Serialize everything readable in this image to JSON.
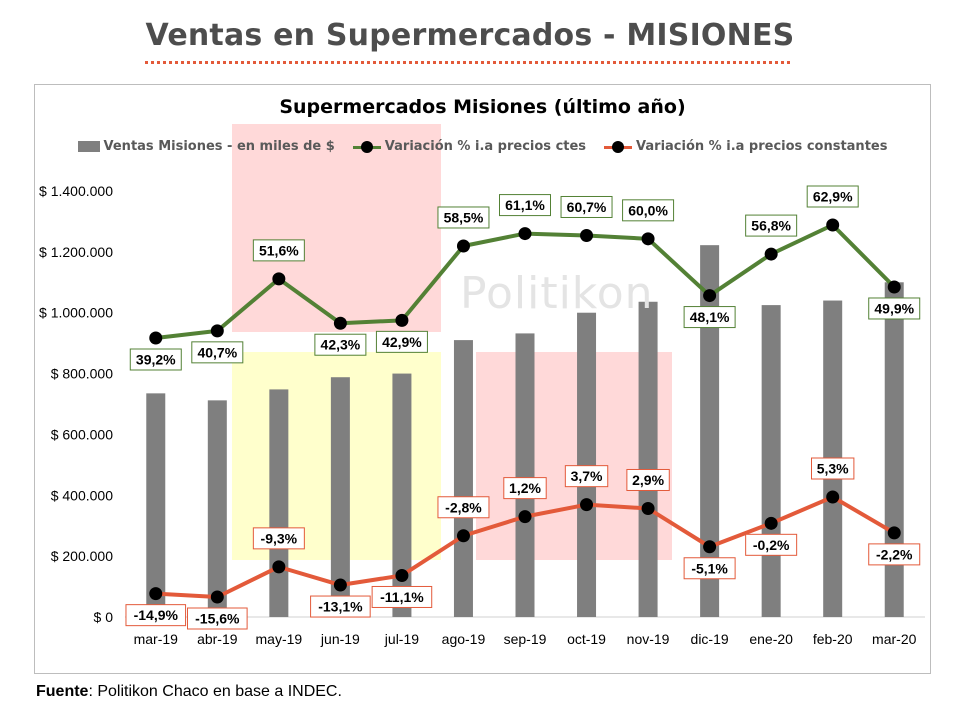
{
  "page": {
    "title": "Ventas en Supermercados - MISIONES",
    "watermark": "Politikon",
    "source_label": "Fuente",
    "source_text": ": Politikon Chaco en base a INDEC."
  },
  "chart_data": {
    "type": "bar",
    "title": "Supermercados Misiones (último año)",
    "categories": [
      "mar-19",
      "abr-19",
      "may-19",
      "jun-19",
      "jul-19",
      "ago-19",
      "sep-19",
      "oct-19",
      "nov-19",
      "dic-19",
      "ene-20",
      "feb-20",
      "mar-20"
    ],
    "ylim": [
      0,
      1400000
    ],
    "y_ticks": [
      0,
      200000,
      400000,
      600000,
      800000,
      1000000,
      1200000,
      1400000
    ],
    "y_tick_labels": [
      "$ 0",
      "$ 200.000",
      "$ 400.000",
      "$ 600.000",
      "$ 800.000",
      "$ 1.000.000",
      "$ 1.200.000",
      "$ 1.400.000"
    ],
    "grid": false,
    "legend_position": "top",
    "series": [
      {
        "name": "Ventas Misiones - en miles de $",
        "type": "bar",
        "color": "#7f7f7f",
        "values": [
          735000,
          712000,
          748000,
          788000,
          800000,
          910000,
          932000,
          1000000,
          1036000,
          1222000,
          1025000,
          1040000,
          1100000
        ]
      },
      {
        "name": "Variación % i.a precios ctes",
        "type": "line",
        "color": "#538135",
        "label_border": "#538135",
        "values": [
          39.2,
          40.7,
          51.6,
          42.3,
          42.9,
          58.5,
          61.1,
          60.7,
          60.0,
          48.1,
          56.8,
          62.9,
          49.9
        ],
        "labels": [
          "39,2%",
          "40,7%",
          "51,6%",
          "42,3%",
          "42,9%",
          "58,5%",
          "61,1%",
          "60,7%",
          "60,0%",
          "48,1%",
          "56,8%",
          "62,9%",
          "49,9%"
        ]
      },
      {
        "name": "Variación % i.a precios constantes",
        "type": "line",
        "color": "#e35a3a",
        "label_border": "#e35a3a",
        "values": [
          -14.9,
          -15.6,
          -9.3,
          -13.1,
          -11.1,
          -2.8,
          1.2,
          3.7,
          2.9,
          -5.1,
          -0.2,
          5.3,
          -2.2
        ],
        "labels": [
          "-14,9%",
          "-15,6%",
          "-9,3%",
          "-13,1%",
          "-11,1%",
          "-2,8%",
          "1,2%",
          "3,7%",
          "2,9%",
          "-5,1%",
          "-0,2%",
          "5,3%",
          "-2,2%"
        ]
      }
    ],
    "highlight_colors": {
      "red": "#ffd9d9",
      "yellow": "#ffffcc"
    }
  }
}
